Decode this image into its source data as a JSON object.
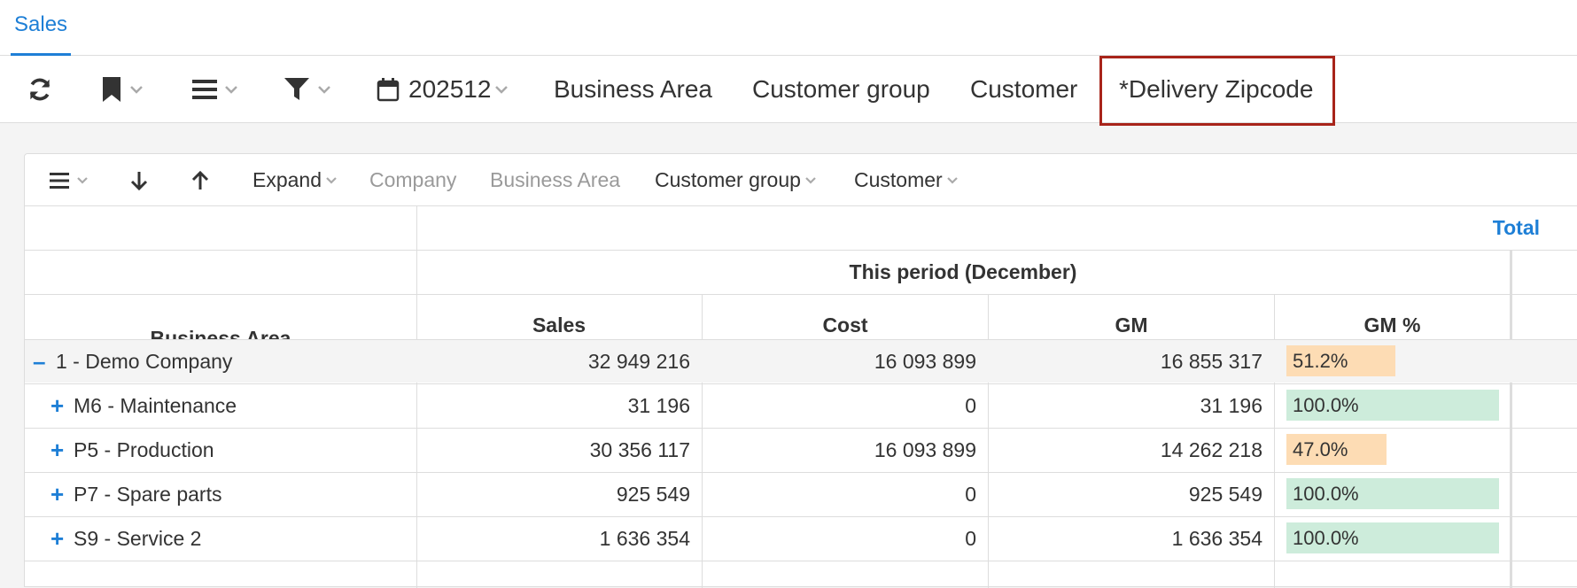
{
  "tabs": [
    {
      "label": "Sales",
      "active": true
    }
  ],
  "toolbar": {
    "period": "202512",
    "dimensions": [
      "Business Area",
      "Customer group",
      "Customer",
      "*Delivery Zipcode"
    ],
    "highlighted": "*Delivery Zipcode"
  },
  "table_toolbar": {
    "expand_label": "Expand",
    "levels": [
      {
        "label": "Company",
        "enabled": false
      },
      {
        "label": "Business Area",
        "enabled": false
      },
      {
        "label": "Customer group",
        "enabled": true
      },
      {
        "label": "Customer",
        "enabled": true
      }
    ]
  },
  "table": {
    "total_label": "Total",
    "period_label": "This period (December)",
    "row_header": "Business Area",
    "columns": [
      "Sales",
      "Cost",
      "GM",
      "GM %"
    ],
    "rows": [
      {
        "toggle": "–",
        "label": "1 - Demo Company",
        "sales": "32 949 216",
        "cost": "16 093 899",
        "gm": "16 855 317",
        "gm_pct": "51.2%",
        "gm_frac": 0.512,
        "indent": false,
        "status": "warning"
      },
      {
        "toggle": "+",
        "label": "M6 - Maintenance",
        "sales": "31 196",
        "cost": "0",
        "gm": "31 196",
        "gm_pct": "100.0%",
        "gm_frac": 1.0,
        "indent": true,
        "status": "good"
      },
      {
        "toggle": "+",
        "label": "P5 - Production",
        "sales": "30 356 117",
        "cost": "16 093 899",
        "gm": "14 262 218",
        "gm_pct": "47.0%",
        "gm_frac": 0.47,
        "indent": true,
        "status": "warning"
      },
      {
        "toggle": "+",
        "label": "P7 - Spare parts",
        "sales": "925 549",
        "cost": "0",
        "gm": "925 549",
        "gm_pct": "100.0%",
        "gm_frac": 1.0,
        "indent": true,
        "status": "good"
      },
      {
        "toggle": "+",
        "label": "S9 - Service 2",
        "sales": "1 636 354",
        "cost": "0",
        "gm": "1 636 354",
        "gm_pct": "100.0%",
        "gm_frac": 1.0,
        "indent": true,
        "status": "good"
      }
    ]
  },
  "colors": {
    "accent": "#1e7fd6",
    "highlight_border": "#a8241a",
    "bar_good": "#cdecdb",
    "bar_warning": "#fddcb4"
  }
}
